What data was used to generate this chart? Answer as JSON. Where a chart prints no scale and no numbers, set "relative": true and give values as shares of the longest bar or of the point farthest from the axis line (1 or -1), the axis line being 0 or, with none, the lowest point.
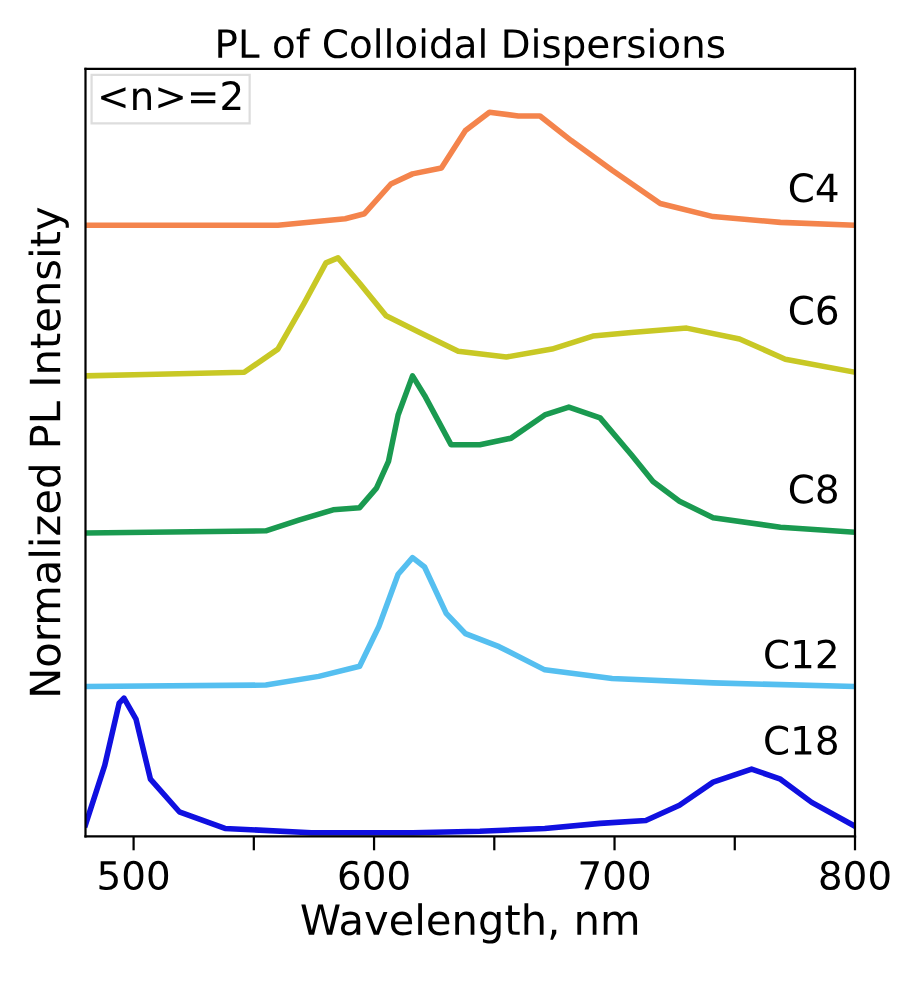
{
  "chart_data": {
    "type": "line",
    "title": "PL of Colloidal Dispersions",
    "xlabel": "Wavelength, nm",
    "ylabel": "Normalized PL Intensity",
    "relative": true,
    "legend": false,
    "grid": false,
    "xlim": [
      480,
      800
    ],
    "xticks": [
      500,
      {
        "value": 550,
        "label": null
      },
      600,
      {
        "value": 650,
        "label": null
      },
      700,
      {
        "value": 750,
        "label": null
      },
      800
    ],
    "annotations": [
      "<n>=2"
    ],
    "series": [
      {
        "name": "C4",
        "color": "#f4844c",
        "x": [
          480,
          560,
          588,
          596,
          607,
          616,
          628,
          638,
          648,
          660,
          669,
          682,
          699,
          719,
          741,
          769,
          800
        ],
        "values": [
          0.844,
          0.844,
          0.853,
          0.86,
          0.901,
          0.915,
          0.923,
          0.975,
          1.0,
          0.995,
          0.995,
          0.961,
          0.92,
          0.874,
          0.856,
          0.848,
          0.844
        ]
      },
      {
        "name": "C6",
        "color": "#c8c825",
        "x": [
          480,
          505,
          546,
          560,
          571,
          580,
          585,
          594,
          605,
          619,
          635,
          655,
          674,
          691,
          707,
          730,
          752,
          771,
          800
        ],
        "values": [
          0.636,
          0.638,
          0.641,
          0.673,
          0.737,
          0.792,
          0.799,
          0.764,
          0.719,
          0.696,
          0.67,
          0.662,
          0.673,
          0.691,
          0.696,
          0.702,
          0.687,
          0.659,
          0.641
        ]
      },
      {
        "name": "C8",
        "color": "#1a9a50",
        "x": [
          480,
          555,
          569,
          583,
          594,
          601,
          606,
          610,
          616,
          621,
          632,
          644,
          657,
          671,
          681,
          694,
          707,
          716,
          727,
          741,
          769,
          800
        ],
        "values": [
          0.419,
          0.422,
          0.437,
          0.451,
          0.454,
          0.481,
          0.518,
          0.582,
          0.636,
          0.609,
          0.541,
          0.541,
          0.55,
          0.582,
          0.593,
          0.578,
          0.527,
          0.49,
          0.463,
          0.44,
          0.427,
          0.42
        ]
      },
      {
        "name": "C12",
        "color": "#55bff0",
        "x": [
          480,
          555,
          577,
          594,
          602,
          610,
          616,
          621,
          630,
          638,
          652,
          671,
          699,
          741,
          800
        ],
        "values": [
          0.207,
          0.209,
          0.221,
          0.235,
          0.29,
          0.362,
          0.385,
          0.372,
          0.308,
          0.28,
          0.262,
          0.23,
          0.218,
          0.212,
          0.207
        ]
      },
      {
        "name": "C18",
        "color": "#1010e0",
        "x": [
          480,
          488,
          494,
          496,
          501,
          507,
          519,
          538,
          574,
          616,
          644,
          671,
          694,
          713,
          727,
          741,
          757,
          769,
          782,
          800
        ],
        "values": [
          0.016,
          0.098,
          0.184,
          0.191,
          0.162,
          0.079,
          0.034,
          0.011,
          0.005,
          0.005,
          0.007,
          0.011,
          0.018,
          0.022,
          0.043,
          0.075,
          0.093,
          0.079,
          0.047,
          0.014
        ]
      }
    ]
  }
}
